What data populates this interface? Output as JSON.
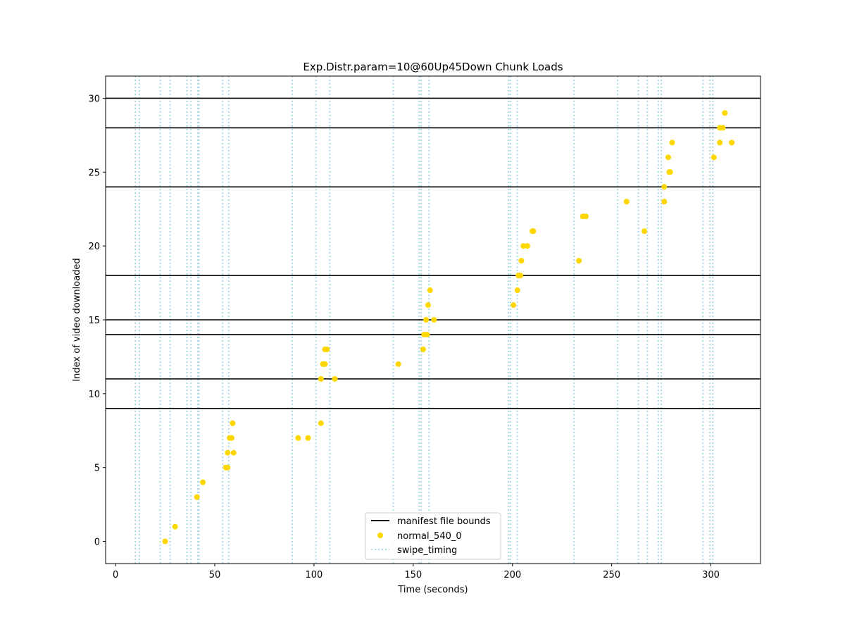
{
  "chart_data": {
    "type": "scatter",
    "title": "Exp.Distr.param=10@60Up45Down Chunk Loads",
    "xlabel": "Time (seconds)",
    "ylabel": "Index of video downloaded",
    "xlim": [
      -5,
      325
    ],
    "ylim": [
      -1.5,
      31.5
    ],
    "xticks": [
      0,
      50,
      100,
      150,
      200,
      250,
      300
    ],
    "yticks": [
      0,
      5,
      10,
      15,
      20,
      25,
      30
    ],
    "grid": false,
    "legend_position": "lower center",
    "colors": {
      "manifest": "#000000",
      "points": "#ffd700",
      "swipe": "#add8e6"
    },
    "manifest_bounds": {
      "name": "manifest file bounds",
      "y": [
        9,
        11,
        14,
        15,
        18,
        24,
        28,
        30
      ]
    },
    "swipe_timing": {
      "name": "swipe_timing",
      "x": [
        10,
        12,
        22.5,
        27.5,
        36,
        38,
        41.5,
        42,
        54,
        57,
        89,
        101,
        108,
        140,
        153,
        154,
        158,
        198,
        199,
        202.5,
        231,
        253,
        263.5,
        268,
        273.5,
        275,
        296,
        299.5,
        301
      ]
    },
    "series": [
      {
        "name": "normal_540_0",
        "points": [
          {
            "x": 25,
            "y": 0
          },
          {
            "x": 30,
            "y": 1
          },
          {
            "x": 41,
            "y": 3
          },
          {
            "x": 44,
            "y": 4
          },
          {
            "x": 55.5,
            "y": 5
          },
          {
            "x": 56.5,
            "y": 5
          },
          {
            "x": 56.5,
            "y": 6
          },
          {
            "x": 59.5,
            "y": 6
          },
          {
            "x": 57.5,
            "y": 7
          },
          {
            "x": 58.5,
            "y": 7
          },
          {
            "x": 59,
            "y": 8
          },
          {
            "x": 92,
            "y": 7
          },
          {
            "x": 97,
            "y": 7
          },
          {
            "x": 103.5,
            "y": 8
          },
          {
            "x": 103.5,
            "y": 11
          },
          {
            "x": 104.5,
            "y": 12
          },
          {
            "x": 105.5,
            "y": 12
          },
          {
            "x": 105.5,
            "y": 13
          },
          {
            "x": 106.5,
            "y": 13
          },
          {
            "x": 110.5,
            "y": 11
          },
          {
            "x": 142.5,
            "y": 12
          },
          {
            "x": 155,
            "y": 13
          },
          {
            "x": 155.5,
            "y": 14
          },
          {
            "x": 157,
            "y": 14
          },
          {
            "x": 156.5,
            "y": 15
          },
          {
            "x": 160.5,
            "y": 15
          },
          {
            "x": 157.5,
            "y": 16
          },
          {
            "x": 158.5,
            "y": 17
          },
          {
            "x": 200.5,
            "y": 16
          },
          {
            "x": 202.5,
            "y": 17
          },
          {
            "x": 203,
            "y": 18
          },
          {
            "x": 204,
            "y": 18
          },
          {
            "x": 204.5,
            "y": 19
          },
          {
            "x": 205.5,
            "y": 20
          },
          {
            "x": 207.5,
            "y": 20
          },
          {
            "x": 210,
            "y": 21
          },
          {
            "x": 210.5,
            "y": 21
          },
          {
            "x": 233.5,
            "y": 19
          },
          {
            "x": 235.5,
            "y": 22
          },
          {
            "x": 237,
            "y": 22
          },
          {
            "x": 257.5,
            "y": 23
          },
          {
            "x": 266.5,
            "y": 21
          },
          {
            "x": 276.5,
            "y": 23
          },
          {
            "x": 276.5,
            "y": 24
          },
          {
            "x": 279,
            "y": 25
          },
          {
            "x": 279.5,
            "y": 25
          },
          {
            "x": 278.5,
            "y": 26
          },
          {
            "x": 280.5,
            "y": 27
          },
          {
            "x": 301.5,
            "y": 26
          },
          {
            "x": 304.5,
            "y": 27
          },
          {
            "x": 304.5,
            "y": 28
          },
          {
            "x": 306,
            "y": 28
          },
          {
            "x": 307,
            "y": 29
          },
          {
            "x": 310.5,
            "y": 27
          }
        ]
      }
    ],
    "legend": [
      "manifest file bounds",
      "normal_540_0",
      "swipe_timing"
    ]
  }
}
